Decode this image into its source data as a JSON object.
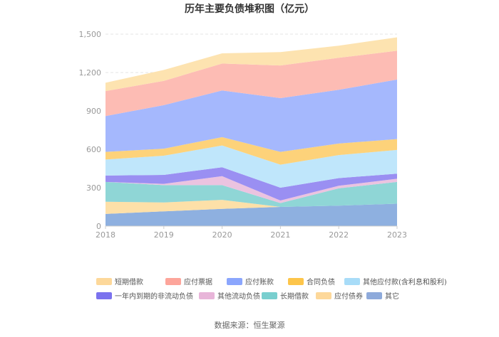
{
  "chart_data": {
    "type": "area",
    "title": "历年主要负债堆积图（亿元）",
    "source_label": "数据来源：恒生聚源",
    "categories": [
      "2018",
      "2019",
      "2020",
      "2021",
      "2022",
      "2023"
    ],
    "ylim": [
      0,
      1500
    ],
    "yticks": [
      0,
      300,
      600,
      900,
      1200,
      1500
    ],
    "ytick_labels": [
      "0",
      "300",
      "600",
      "900",
      "1,200",
      "1,500"
    ],
    "series": [
      {
        "name": "其它",
        "color": "#8eb0e0",
        "values": [
          95,
          115,
          135,
          150,
          160,
          175
        ]
      },
      {
        "name": "应付债券",
        "color": "#fde0a8",
        "values": [
          95,
          70,
          70,
          0,
          0,
          0
        ]
      },
      {
        "name": "长期借款",
        "color": "#8fd6d6",
        "values": [
          155,
          135,
          115,
          30,
          135,
          170
        ]
      },
      {
        "name": "其他流动负债",
        "color": "#ebc3e0",
        "values": [
          0,
          10,
          70,
          20,
          20,
          25
        ]
      },
      {
        "name": "一年内到期的非流动负债",
        "color": "#9a8ff2",
        "values": [
          50,
          70,
          70,
          100,
          60,
          40
        ]
      },
      {
        "name": "其他应付款(含利息和股利)",
        "color": "#bfe6fb",
        "values": [
          125,
          150,
          170,
          180,
          180,
          185
        ]
      },
      {
        "name": "合同负债",
        "color": "#fdd27a",
        "values": [
          60,
          55,
          65,
          100,
          90,
          85
        ]
      },
      {
        "name": "应付账款",
        "color": "#a5b8fd",
        "values": [
          280,
          340,
          365,
          420,
          420,
          465
        ]
      },
      {
        "name": "应付票据",
        "color": "#fdbcb4",
        "values": [
          195,
          190,
          210,
          255,
          250,
          225
        ]
      },
      {
        "name": "短期借款",
        "color": "#fde3b0",
        "values": [
          65,
          85,
          80,
          105,
          95,
          105
        ]
      }
    ],
    "legend": {
      "position": "bottom",
      "order": [
        "短期借款",
        "应付票据",
        "应付账款",
        "合同负债",
        "其他应付款(含利息和股利)",
        "一年内到期的非流动负债",
        "其他流动负债",
        "长期借款",
        "应付债券",
        "其它"
      ],
      "swatch_colors": {
        "短期借款": "#fdd89a",
        "应付票据": "#fda59b",
        "应付账款": "#8ba6fd",
        "合同负债": "#fdc54a",
        "其他应付款(含利息和股利)": "#a8dcf8",
        "一年内到期的非流动负债": "#7b72ee",
        "其他流动负债": "#e8b5d9",
        "长期借款": "#79cfcf",
        "应付债券": "#fdd89a",
        "其它": "#8eaadb"
      }
    }
  }
}
